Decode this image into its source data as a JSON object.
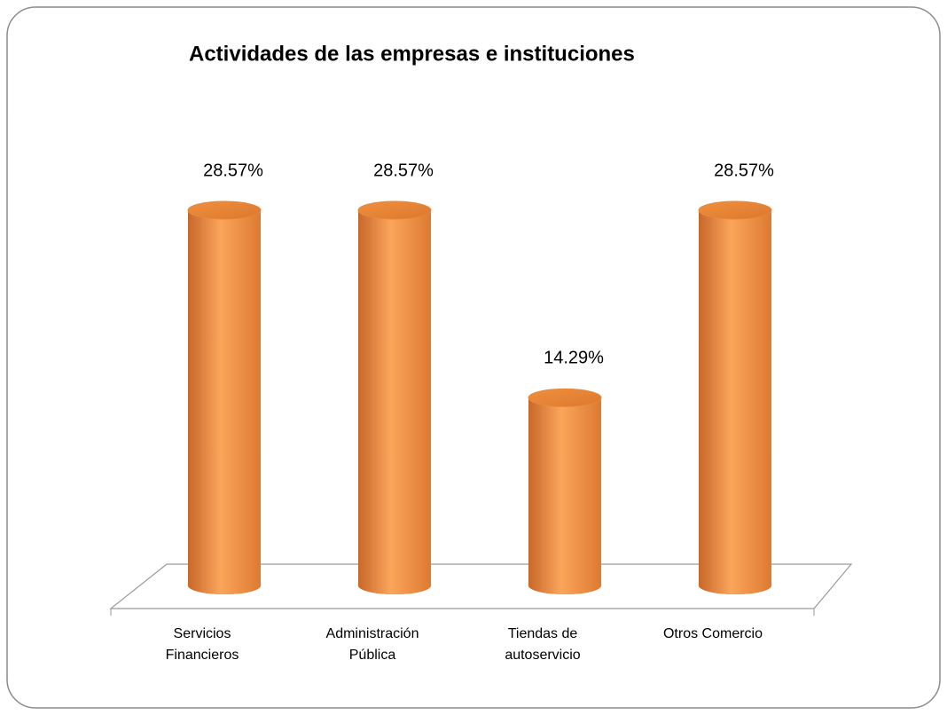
{
  "chart_data": {
    "type": "bar",
    "title": "Actividades de las empresas e instituciones",
    "categories": [
      "Servicios Financieros",
      "Administración Pública",
      "Tiendas de autoservicio",
      "Otros Comercio"
    ],
    "values": [
      28.57,
      28.57,
      14.29,
      28.57
    ],
    "value_labels": [
      "28.57%",
      "28.57%",
      "14.29%",
      "28.57%"
    ],
    "color": "#f79646"
  }
}
